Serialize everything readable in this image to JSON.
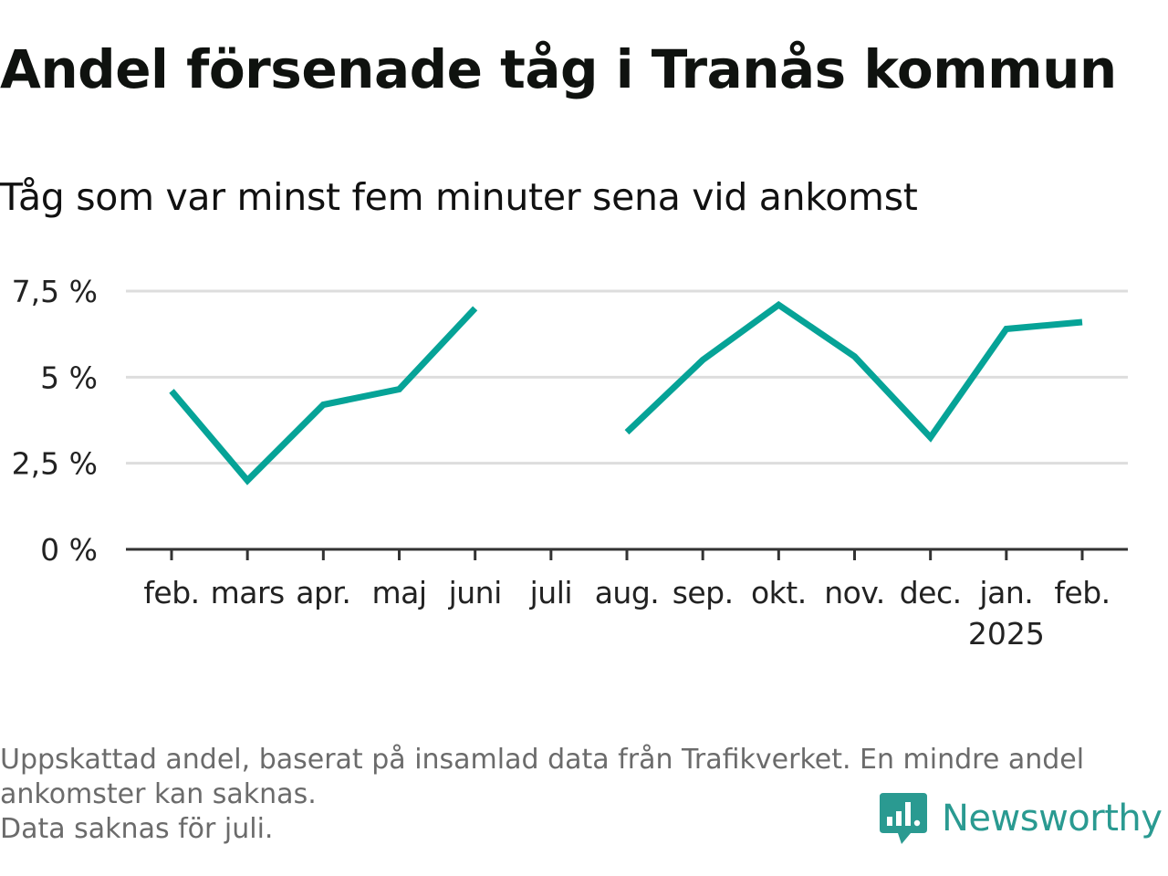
{
  "title": "Andel försenade tåg i Tranås kommun",
  "subtitle": "Tåg som var minst fem minuter sena vid ankomst",
  "colors": {
    "line": "#06a397",
    "grid": "#dddddd",
    "axis": "#333333",
    "footnote": "#6b6b6b",
    "brand": "#2a9a91"
  },
  "chart_data": {
    "type": "line",
    "categories": [
      "feb.",
      "mars",
      "apr.",
      "maj",
      "juni",
      "juli",
      "aug.",
      "sep.",
      "okt.",
      "nov.",
      "dec.",
      "jan.",
      "feb."
    ],
    "year_label": "2025",
    "year_label_index": 11,
    "series": [
      {
        "values": [
          4.6,
          2.0,
          4.2,
          4.65,
          7.0,
          null,
          3.4,
          5.5,
          7.1,
          5.6,
          3.25,
          6.4,
          6.6
        ]
      }
    ],
    "ylim": [
      0,
      7.5
    ],
    "yticks": [
      {
        "value": 0,
        "label": "0 %"
      },
      {
        "value": 2.5,
        "label": "2,5 %"
      },
      {
        "value": 5,
        "label": "5 %"
      },
      {
        "value": 7.5,
        "label": "7,5 %"
      }
    ],
    "unit": "%",
    "grid": true,
    "legend": "none"
  },
  "footnote": {
    "line1": "Uppskattad andel, baserat på insamlad data från Trafikverket. En mindre andel",
    "line2": "ankomster kan saknas.",
    "line3": "Data saknas för juli."
  },
  "brand": {
    "name": "Newsworthy",
    "icon": "newsworthy-logo-icon"
  }
}
